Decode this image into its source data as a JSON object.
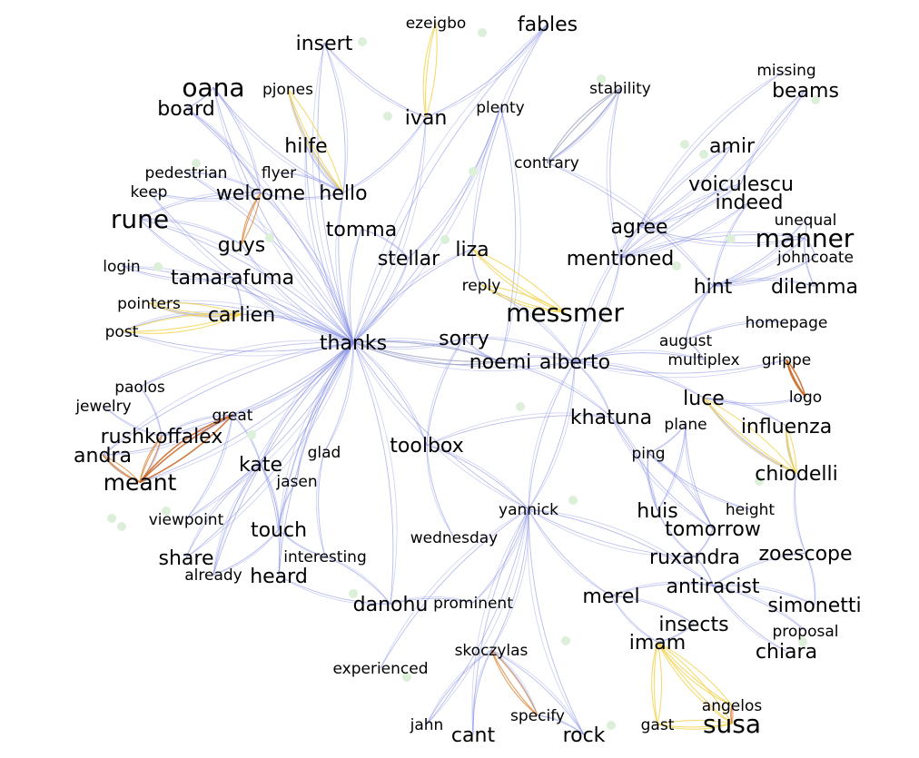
{
  "colors": {
    "background": "#ffffff",
    "edge_default": "#7b86e0",
    "edge_yellow": "#f2d24a",
    "edge_orange": "#d9863a",
    "edge_darkorange": "#c45a12",
    "edge_gray": "#9aa0c0",
    "node": "#dcefd8",
    "text": "#000000"
  },
  "words": [
    {
      "id": "ezeigbo",
      "text": "ezeigbo"
    },
    {
      "id": "fables",
      "text": "fables"
    },
    {
      "id": "insert",
      "text": "insert"
    },
    {
      "id": "missing",
      "text": "missing"
    },
    {
      "id": "oana",
      "text": "oana"
    },
    {
      "id": "pjones",
      "text": "pjones"
    },
    {
      "id": "stability",
      "text": "stability"
    },
    {
      "id": "beams",
      "text": "beams"
    },
    {
      "id": "board",
      "text": "board"
    },
    {
      "id": "plenty",
      "text": "plenty"
    },
    {
      "id": "ivan",
      "text": "ivan"
    },
    {
      "id": "hilfe",
      "text": "hilfe"
    },
    {
      "id": "amir",
      "text": "amir"
    },
    {
      "id": "contrary",
      "text": "contrary"
    },
    {
      "id": "pedestrian",
      "text": "pedestrian"
    },
    {
      "id": "flyer",
      "text": "flyer"
    },
    {
      "id": "voiculescu",
      "text": "voiculescu"
    },
    {
      "id": "keep",
      "text": "keep"
    },
    {
      "id": "welcome",
      "text": "welcome"
    },
    {
      "id": "hello",
      "text": "hello"
    },
    {
      "id": "indeed",
      "text": "indeed"
    },
    {
      "id": "rune",
      "text": "rune"
    },
    {
      "id": "unequal",
      "text": "unequal"
    },
    {
      "id": "agree",
      "text": "agree"
    },
    {
      "id": "tomma",
      "text": "tomma"
    },
    {
      "id": "manner",
      "text": "manner"
    },
    {
      "id": "guys",
      "text": "guys"
    },
    {
      "id": "liza",
      "text": "liza"
    },
    {
      "id": "stellar",
      "text": "stellar"
    },
    {
      "id": "mentioned",
      "text": "mentioned"
    },
    {
      "id": "johncoate",
      "text": "johncoate"
    },
    {
      "id": "login",
      "text": "login"
    },
    {
      "id": "tamarafuma",
      "text": "tamarafuma"
    },
    {
      "id": "reply",
      "text": "reply"
    },
    {
      "id": "hint",
      "text": "hint"
    },
    {
      "id": "dilemma",
      "text": "dilemma"
    },
    {
      "id": "pointers",
      "text": "pointers"
    },
    {
      "id": "messmer",
      "text": "messmer"
    },
    {
      "id": "carlien",
      "text": "carlien"
    },
    {
      "id": "homepage",
      "text": "homepage"
    },
    {
      "id": "post",
      "text": "post"
    },
    {
      "id": "sorry",
      "text": "sorry"
    },
    {
      "id": "thanks",
      "text": "thanks"
    },
    {
      "id": "august",
      "text": "august"
    },
    {
      "id": "noemi",
      "text": "noemi"
    },
    {
      "id": "alberto",
      "text": "alberto"
    },
    {
      "id": "multiplex",
      "text": "multiplex"
    },
    {
      "id": "grippe",
      "text": "grippe"
    },
    {
      "id": "paolos",
      "text": "paolos"
    },
    {
      "id": "logo",
      "text": "logo"
    },
    {
      "id": "jewelry",
      "text": "jewelry"
    },
    {
      "id": "luce",
      "text": "luce"
    },
    {
      "id": "great",
      "text": "great"
    },
    {
      "id": "khatuna",
      "text": "khatuna"
    },
    {
      "id": "plane",
      "text": "plane"
    },
    {
      "id": "influenza",
      "text": "influenza"
    },
    {
      "id": "rushkoffalex",
      "text": "rushkoffalex"
    },
    {
      "id": "toolbox",
      "text": "toolbox"
    },
    {
      "id": "andra",
      "text": "andra"
    },
    {
      "id": "glad",
      "text": "glad"
    },
    {
      "id": "ping",
      "text": "ping"
    },
    {
      "id": "kate",
      "text": "kate"
    },
    {
      "id": "chiodelli",
      "text": "chiodelli"
    },
    {
      "id": "meant",
      "text": "meant"
    },
    {
      "id": "jasen",
      "text": "jasen"
    },
    {
      "id": "yannick",
      "text": "yannick"
    },
    {
      "id": "height",
      "text": "height"
    },
    {
      "id": "huis",
      "text": "huis"
    },
    {
      "id": "viewpoint",
      "text": "viewpoint"
    },
    {
      "id": "tomorrow",
      "text": "tomorrow"
    },
    {
      "id": "touch",
      "text": "touch"
    },
    {
      "id": "wednesday",
      "text": "wednesday"
    },
    {
      "id": "zoescope",
      "text": "zoescope"
    },
    {
      "id": "interesting",
      "text": "interesting"
    },
    {
      "id": "ruxandra",
      "text": "ruxandra"
    },
    {
      "id": "share",
      "text": "share"
    },
    {
      "id": "already",
      "text": "already"
    },
    {
      "id": "heard",
      "text": "heard"
    },
    {
      "id": "antiracist",
      "text": "antiracist"
    },
    {
      "id": "merel",
      "text": "merel"
    },
    {
      "id": "danohu",
      "text": "danohu"
    },
    {
      "id": "prominent",
      "text": "prominent"
    },
    {
      "id": "simonetti",
      "text": "simonetti"
    },
    {
      "id": "insects",
      "text": "insects"
    },
    {
      "id": "proposal",
      "text": "proposal"
    },
    {
      "id": "imam",
      "text": "imam"
    },
    {
      "id": "skoczylas",
      "text": "skoczylas"
    },
    {
      "id": "chiara",
      "text": "chiara"
    },
    {
      "id": "experienced",
      "text": "experienced"
    },
    {
      "id": "angelos",
      "text": "angelos"
    },
    {
      "id": "specify",
      "text": "specify"
    },
    {
      "id": "susa",
      "text": "susa"
    },
    {
      "id": "jahn",
      "text": "jahn"
    },
    {
      "id": "gast",
      "text": "gast"
    },
    {
      "id": "cant",
      "text": "cant"
    },
    {
      "id": "rock",
      "text": "rock"
    }
  ],
  "edges": [
    [
      "thanks",
      "insert"
    ],
    [
      "thanks",
      "ivan"
    ],
    [
      "thanks",
      "hello"
    ],
    [
      "thanks",
      "welcome"
    ],
    [
      "thanks",
      "guys"
    ],
    [
      "thanks",
      "rune"
    ],
    [
      "thanks",
      "keep"
    ],
    [
      "thanks",
      "login"
    ],
    [
      "thanks",
      "tamarafuma"
    ],
    [
      "thanks",
      "carlien"
    ],
    [
      "thanks",
      "post"
    ],
    [
      "thanks",
      "pointers"
    ],
    [
      "thanks",
      "tomma"
    ],
    [
      "thanks",
      "stellar"
    ],
    [
      "thanks",
      "liza"
    ],
    [
      "thanks",
      "plenty"
    ],
    [
      "thanks",
      "fables"
    ],
    [
      "thanks",
      "sorry"
    ],
    [
      "thanks",
      "noemi"
    ],
    [
      "thanks",
      "alberto"
    ],
    [
      "thanks",
      "great"
    ],
    [
      "thanks",
      "kate"
    ],
    [
      "thanks",
      "rushkoffalex"
    ],
    [
      "thanks",
      "touch"
    ],
    [
      "thanks",
      "share"
    ],
    [
      "thanks",
      "heard"
    ],
    [
      "thanks",
      "toolbox"
    ],
    [
      "thanks",
      "yannick"
    ],
    [
      "thanks",
      "danohu"
    ],
    [
      "thanks",
      "paolos"
    ],
    [
      "thanks",
      "oana"
    ],
    [
      "thanks",
      "board"
    ],
    [
      "thanks",
      "hilfe"
    ],
    [
      "thanks",
      "pedestrian"
    ],
    [
      "thanks",
      "glad"
    ],
    [
      "thanks",
      "jasen"
    ],
    [
      "thanks",
      "meant"
    ],
    [
      "thanks",
      "andra"
    ],
    [
      "thanks",
      "viewpoint"
    ],
    [
      "thanks",
      "already"
    ],
    [
      "insert",
      "hello"
    ],
    [
      "insert",
      "ivan"
    ],
    [
      "oana",
      "board"
    ],
    [
      "oana",
      "hello"
    ],
    [
      "oana",
      "welcome"
    ],
    [
      "pjones",
      "hello"
    ],
    [
      "board",
      "welcome"
    ],
    [
      "hilfe",
      "hello"
    ],
    [
      "flyer",
      "hello"
    ],
    [
      "welcome",
      "hello"
    ],
    [
      "pedestrian",
      "welcome"
    ],
    [
      "keep",
      "welcome"
    ],
    [
      "rune",
      "guys"
    ],
    [
      "rune",
      "tamarafuma"
    ],
    [
      "rune",
      "welcome"
    ],
    [
      "login",
      "tamarafuma"
    ],
    [
      "tamarafuma",
      "carlien"
    ],
    [
      "pointers",
      "carlien"
    ],
    [
      "post",
      "carlien"
    ],
    [
      "hello",
      "ivan"
    ],
    [
      "fables",
      "ivan"
    ],
    [
      "fables",
      "liza"
    ],
    [
      "plenty",
      "noemi"
    ],
    [
      "stability",
      "mentioned"
    ],
    [
      "contrary",
      "hint"
    ],
    [
      "missing",
      "agree"
    ],
    [
      "beams",
      "mentioned"
    ],
    [
      "beams",
      "voiculescu"
    ],
    [
      "amir",
      "agree"
    ],
    [
      "amir",
      "mentioned"
    ],
    [
      "voiculescu",
      "agree"
    ],
    [
      "voiculescu",
      "mentioned"
    ],
    [
      "indeed",
      "mentioned"
    ],
    [
      "indeed",
      "hint"
    ],
    [
      "manner",
      "hint"
    ],
    [
      "manner",
      "dilemma"
    ],
    [
      "manner",
      "johncoate"
    ],
    [
      "manner",
      "unequal"
    ],
    [
      "manner",
      "agree"
    ],
    [
      "manner",
      "mentioned"
    ],
    [
      "hint",
      "dilemma"
    ],
    [
      "hint",
      "johncoate"
    ],
    [
      "hint",
      "alberto"
    ],
    [
      "hint",
      "august"
    ],
    [
      "unequal",
      "hint"
    ],
    [
      "agree",
      "alberto"
    ],
    [
      "mentioned",
      "alberto"
    ],
    [
      "sorry",
      "noemi"
    ],
    [
      "noemi",
      "alberto"
    ],
    [
      "alberto",
      "sorry"
    ],
    [
      "alberto",
      "multiplex"
    ],
    [
      "alberto",
      "grippe"
    ],
    [
      "alberto",
      "khatuna"
    ],
    [
      "alberto",
      "yannick"
    ],
    [
      "alberto",
      "luce"
    ],
    [
      "homepage",
      "august"
    ],
    [
      "august",
      "multiplex"
    ],
    [
      "luce",
      "logo"
    ],
    [
      "luce",
      "influenza"
    ],
    [
      "luce",
      "chiodelli"
    ],
    [
      "plane",
      "ping"
    ],
    [
      "plane",
      "tomorrow"
    ],
    [
      "plane",
      "huis"
    ],
    [
      "ping",
      "height"
    ],
    [
      "ping",
      "tomorrow"
    ],
    [
      "ping",
      "huis"
    ],
    [
      "khatuna",
      "huis"
    ],
    [
      "khatuna",
      "tomorrow"
    ],
    [
      "tomorrow",
      "ruxandra"
    ],
    [
      "huis",
      "ruxandra"
    ],
    [
      "ruxandra",
      "antiracist"
    ],
    [
      "zoescope",
      "antiracist"
    ],
    [
      "zoescope",
      "simonetti"
    ],
    [
      "chiodelli",
      "zoescope"
    ],
    [
      "antiracist",
      "simonetti"
    ],
    [
      "antiracist",
      "chiara"
    ],
    [
      "antiracist",
      "proposal"
    ],
    [
      "antiracist",
      "merel"
    ],
    [
      "merel",
      "insects"
    ],
    [
      "merel",
      "imam"
    ],
    [
      "insects",
      "imam"
    ],
    [
      "yannick",
      "merel"
    ],
    [
      "yannick",
      "skoczylas"
    ],
    [
      "yannick",
      "cant"
    ],
    [
      "yannick",
      "jahn"
    ],
    [
      "yannick",
      "experienced"
    ],
    [
      "yannick",
      "prominent"
    ],
    [
      "yannick",
      "rock"
    ],
    [
      "yannick",
      "antiracist"
    ],
    [
      "yannick",
      "ruxandra"
    ],
    [
      "skoczylas",
      "specify"
    ],
    [
      "skoczylas",
      "jahn"
    ],
    [
      "skoczylas",
      "rock"
    ],
    [
      "skoczylas",
      "cant"
    ],
    [
      "specify",
      "rock"
    ],
    [
      "toolbox",
      "wednesday"
    ],
    [
      "toolbox",
      "yannick"
    ],
    [
      "sorry",
      "toolbox"
    ],
    [
      "danohu",
      "prominent"
    ],
    [
      "heard",
      "danohu"
    ],
    [
      "interesting",
      "danohu"
    ],
    [
      "touch",
      "interesting"
    ],
    [
      "kate",
      "touch"
    ],
    [
      "kate",
      "share"
    ],
    [
      "kate",
      "heard"
    ],
    [
      "jasen",
      "touch"
    ],
    [
      "great",
      "kate"
    ],
    [
      "great",
      "rushkoffalex"
    ],
    [
      "great",
      "andra"
    ],
    [
      "glad",
      "interesting"
    ],
    [
      "paolos",
      "rushkoffalex"
    ],
    [
      "jewelry",
      "rushkoffalex"
    ],
    [
      "rushkoffalex",
      "meant"
    ],
    [
      "andra",
      "meant"
    ],
    [
      "touch",
      "already"
    ],
    [
      "kate",
      "already"
    ],
    [
      "great",
      "viewpoint"
    ],
    [
      "stellar",
      "plenty"
    ],
    [
      "tomma",
      "stellar"
    ],
    [
      "liza",
      "reply"
    ],
    [
      "reply",
      "alberto"
    ],
    [
      "khatuna",
      "noemi"
    ],
    [
      "toolbox",
      "khatuna"
    ],
    [
      "yannick",
      "alberto"
    ],
    [
      "stability",
      "contrary"
    ],
    [
      "influenza",
      "chiodelli"
    ]
  ],
  "colored_edges": [
    [
      "ezeigbo",
      "ivan",
      "yellow"
    ],
    [
      "pjones",
      "hello",
      "yellow"
    ],
    [
      "stability",
      "contrary",
      "gray"
    ],
    [
      "welcome",
      "guys",
      "orange"
    ],
    [
      "liza",
      "messmer",
      "yellow"
    ],
    [
      "reply",
      "messmer",
      "yellow"
    ],
    [
      "post",
      "carlien",
      "yellow"
    ],
    [
      "pointers",
      "carlien",
      "yellow"
    ],
    [
      "thanks",
      "noemi",
      "gray"
    ],
    [
      "grippe",
      "logo",
      "darkorange"
    ],
    [
      "luce",
      "chiodelli",
      "yellow"
    ],
    [
      "influenza",
      "chiodelli",
      "yellow"
    ],
    [
      "rushkoffalex",
      "meant",
      "orange"
    ],
    [
      "great",
      "meant",
      "darkorange"
    ],
    [
      "andra",
      "meant",
      "orange"
    ],
    [
      "skoczylas",
      "specify",
      "orange"
    ],
    [
      "imam",
      "susa",
      "yellow"
    ],
    [
      "imam",
      "angelos",
      "yellow"
    ],
    [
      "imam",
      "gast",
      "yellow"
    ],
    [
      "gast",
      "susa",
      "yellow"
    ],
    [
      "angelos",
      "susa",
      "orange"
    ]
  ]
}
